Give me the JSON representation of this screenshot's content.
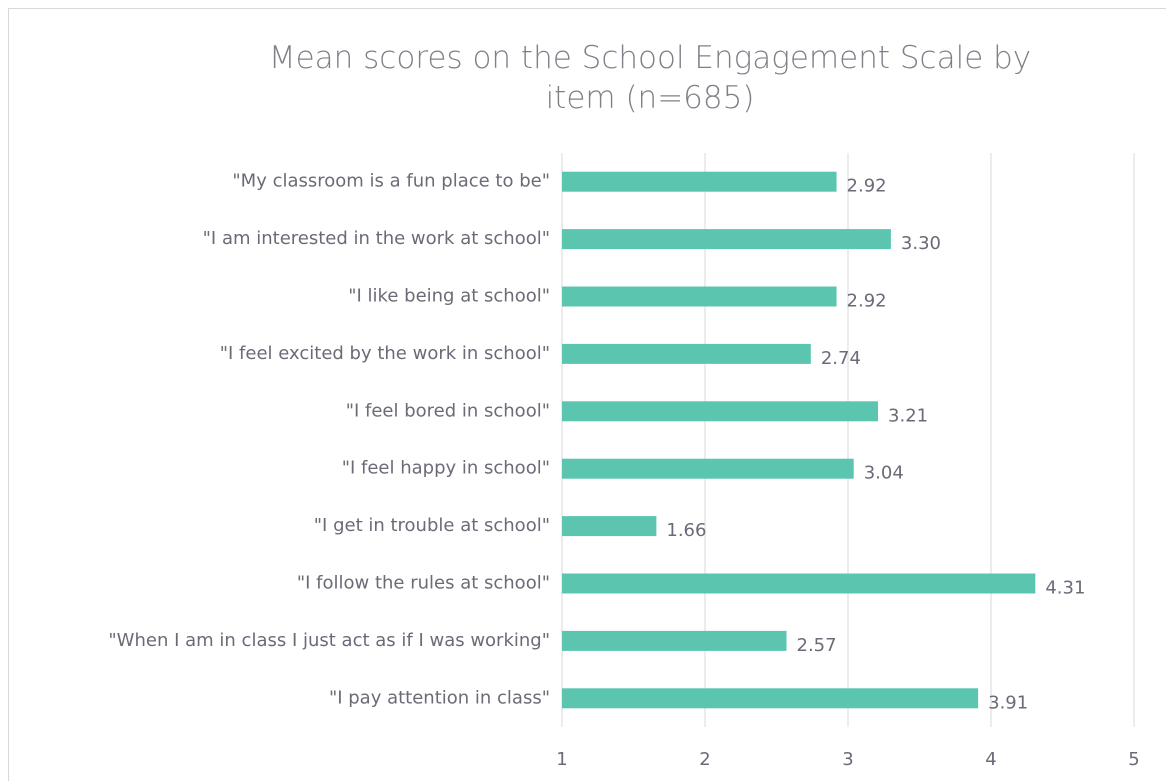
{
  "chart_data": {
    "type": "bar",
    "orientation": "horizontal",
    "title": "Mean scores on the School Engagement Scale by item (n=685)",
    "categories": [
      "\"My classroom is a fun place to be\"",
      "\"I am interested in the work at school\"",
      "\"I like being at school\"",
      "\"I feel excited by the work in school\"",
      "\"I feel bored in school\"",
      "\"I feel happy in school\"",
      "\"I get in trouble at school\"",
      "\"I follow the rules at school\"",
      "\"When I am in class I just act as if I was working\"",
      "\"I pay attention in class\""
    ],
    "values": [
      2.92,
      3.3,
      2.92,
      2.74,
      3.21,
      3.04,
      1.66,
      4.31,
      2.57,
      3.91
    ],
    "value_labels": [
      "2.92",
      "3.30",
      "2.92",
      "2.74",
      "3.21",
      "3.04",
      "1.66",
      "4.31",
      "2.57",
      "3.91"
    ],
    "color": "#5bc5b0",
    "xlim": [
      1,
      5
    ],
    "xticks": [
      1,
      2,
      3,
      4,
      5
    ],
    "grid": true
  }
}
